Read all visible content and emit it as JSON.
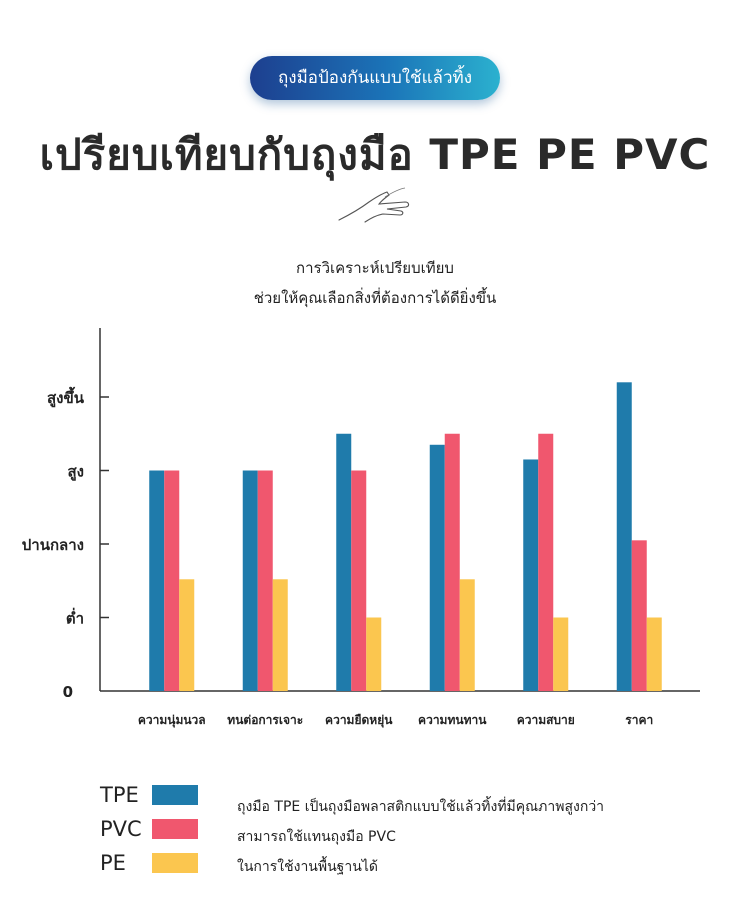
{
  "banner": "ถุงมือป้องกันแบบใช้แล้วทิ้ง",
  "title": "เปรียบเทียบกับถุงมือ TPE  PE  PVC",
  "subtitle_lines": [
    "การวิเคราะห์เปรียบเทียบ",
    "ช่วยให้คุณเลือกสิ่งที่ต้องการได้ดียิ่งขึ้น"
  ],
  "chart_data": {
    "type": "bar",
    "categories": [
      "ความนุ่มนวล",
      "ทนต่อการเจาะ",
      "ความยืดหยุ่น",
      "ความทนทาน",
      "ความสบาย",
      "ราคา"
    ],
    "series": [
      {
        "name": "TPE",
        "values": [
          3.0,
          3.0,
          3.5,
          3.35,
          3.15,
          4.2
        ]
      },
      {
        "name": "PVC",
        "values": [
          3.0,
          3.0,
          3.0,
          3.5,
          3.5,
          2.05
        ]
      },
      {
        "name": "PE",
        "values": [
          1.52,
          1.52,
          1.0,
          1.52,
          1.0,
          1.0
        ]
      }
    ],
    "y_ticks": [
      {
        "value": 0,
        "label": "0"
      },
      {
        "value": 1,
        "label": "ต่ำ"
      },
      {
        "value": 2,
        "label": "ปานกลาง"
      },
      {
        "value": 3,
        "label": "สูง"
      },
      {
        "value": 4,
        "label": "สูงขึ้น"
      }
    ],
    "ylim": [
      0,
      5
    ],
    "grid": false,
    "legend_position": "bottom-left",
    "colors": {
      "TPE": "#1f7bab",
      "PVC": "#f0576e",
      "PE": "#fbc64f"
    }
  },
  "note_lines": [
    "ถุงมือ TPE เป็นถุงมือพลาสติกแบบใช้แล้วทิ้งที่มีคุณภาพสูงกว่า",
    "สามารถใช้แทนถุงมือ PVC",
    "ในการใช้งานพื้นฐานได้"
  ]
}
